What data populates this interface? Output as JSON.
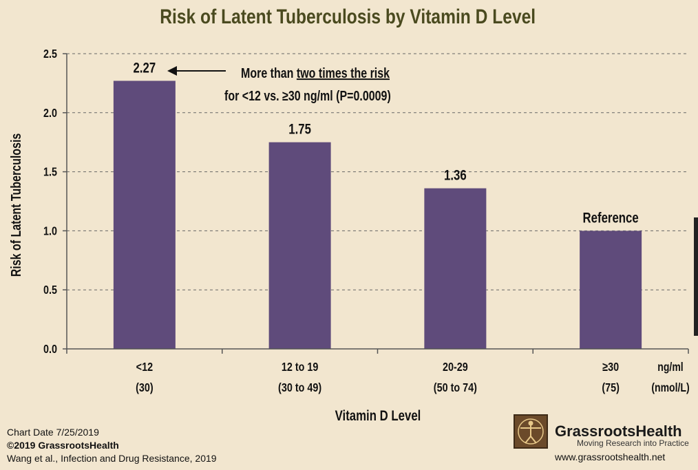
{
  "chart_data": {
    "type": "bar",
    "title": "Risk of Latent Tuberculosis by Vitamin D Level",
    "xlabel": "Vitamin D Level",
    "ylabel": "Risk of Latent Tuberculosis",
    "ylim": [
      0,
      2.5
    ],
    "yticks": [
      "0.0",
      "0.5",
      "1.0",
      "1.5",
      "2.0",
      "2.5"
    ],
    "categories": [
      {
        "line1": "<12",
        "line2": "(30)"
      },
      {
        "line1": "12 to 19",
        "line2": "(30 to 49)"
      },
      {
        "line1": "20-29",
        "line2": "(50 to 74)"
      },
      {
        "line1": "≥30",
        "line2": "(75)"
      }
    ],
    "values": [
      2.27,
      1.75,
      1.36,
      1.0
    ],
    "data_labels": [
      "2.27",
      "1.75",
      "1.36",
      "Reference"
    ],
    "unit_label": {
      "line1": "ng/ml",
      "line2": "(nmol/L)"
    },
    "annotation": {
      "prefix": "More than ",
      "underlined": "two times the risk",
      "line2": "for <12 vs. ≥30 ng/ml (P=0.0009)"
    },
    "bar_color": "#5f4b7b",
    "grid": true
  },
  "footer": {
    "chart_date": "Chart Date 7/25/2019",
    "copyright": "©2019 GrassrootsHealth",
    "citation": "Wang et al., Infection and Drug Resistance, 2019"
  },
  "brand": {
    "name": "GrassrootsHealth",
    "tagline": "Moving Research into Practice",
    "website": "www.grassrootshealth.net"
  }
}
